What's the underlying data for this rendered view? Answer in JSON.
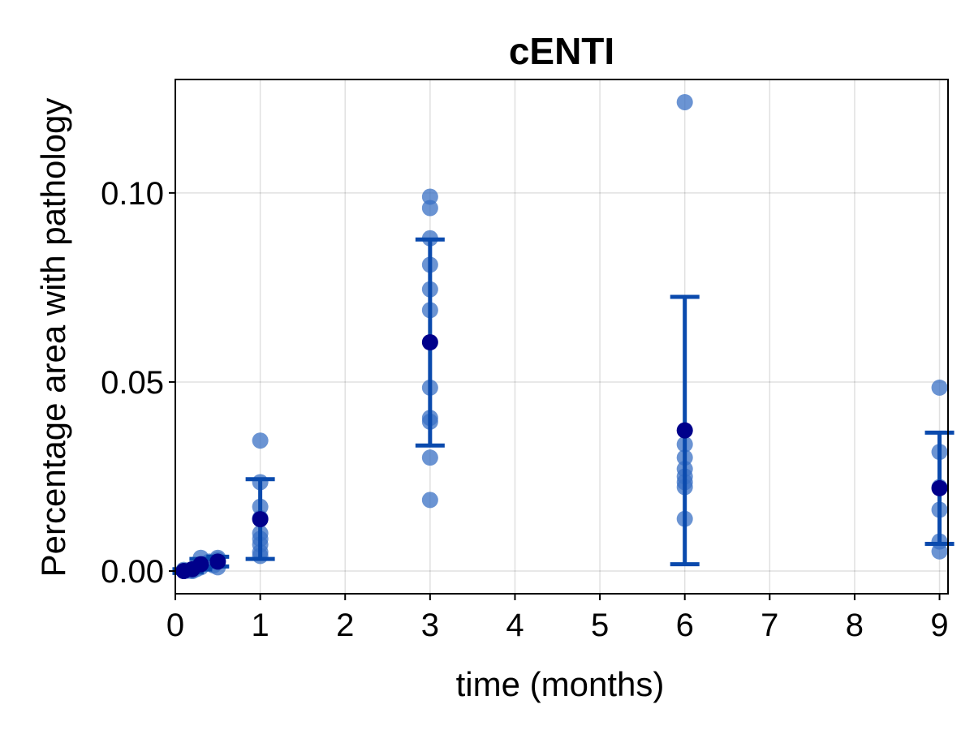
{
  "chart_data": {
    "type": "scatter",
    "title": "cENTI",
    "xlabel": "time (months)",
    "ylabel": "Percentage area with pathology",
    "xlim": [
      0,
      9.1
    ],
    "ylim": [
      -0.006,
      0.13
    ],
    "xticks": [
      0,
      1,
      2,
      3,
      4,
      5,
      6,
      7,
      8,
      9
    ],
    "xtick_labels": [
      "0",
      "1",
      "2",
      "3",
      "4",
      "5",
      "6",
      "7",
      "8",
      "9"
    ],
    "yticks": [
      0.0,
      0.05,
      0.1
    ],
    "ytick_labels": [
      "0.00",
      "0.05",
      "0.10"
    ],
    "grid": true,
    "colors": {
      "points": "#3a70c4",
      "mean": "#00008b",
      "errorbar": "#0a4aad"
    },
    "series": [
      {
        "kind": "individual",
        "points": [
          {
            "x": 0.1,
            "y": 0.0
          },
          {
            "x": 0.1,
            "y": 0.0003
          },
          {
            "x": 0.15,
            "y": 0.0001
          },
          {
            "x": 0.2,
            "y": 0.0002
          },
          {
            "x": 0.2,
            "y": 0.0
          },
          {
            "x": 0.25,
            "y": 0.0005
          },
          {
            "x": 0.3,
            "y": 0.0035
          },
          {
            "x": 0.3,
            "y": 0.001
          },
          {
            "x": 0.35,
            "y": 0.002
          },
          {
            "x": 0.4,
            "y": 0.0025
          },
          {
            "x": 0.45,
            "y": 0.0015
          },
          {
            "x": 0.5,
            "y": 0.0035
          },
          {
            "x": 0.5,
            "y": 0.0025
          },
          {
            "x": 0.5,
            "y": 0.001
          },
          {
            "x": 0.5,
            "y": 0.003
          },
          {
            "x": 1,
            "y": 0.0345
          },
          {
            "x": 1,
            "y": 0.0235
          },
          {
            "x": 1,
            "y": 0.017
          },
          {
            "x": 1,
            "y": 0.014
          },
          {
            "x": 1,
            "y": 0.01
          },
          {
            "x": 1,
            "y": 0.0085
          },
          {
            "x": 1,
            "y": 0.007
          },
          {
            "x": 1,
            "y": 0.005
          },
          {
            "x": 1,
            "y": 0.004
          },
          {
            "x": 3,
            "y": 0.099
          },
          {
            "x": 3,
            "y": 0.096
          },
          {
            "x": 3,
            "y": 0.088
          },
          {
            "x": 3,
            "y": 0.081
          },
          {
            "x": 3,
            "y": 0.0745
          },
          {
            "x": 3,
            "y": 0.069
          },
          {
            "x": 3,
            "y": 0.0485
          },
          {
            "x": 3,
            "y": 0.0405
          },
          {
            "x": 3,
            "y": 0.0395
          },
          {
            "x": 3,
            "y": 0.03
          },
          {
            "x": 3,
            "y": 0.0188
          },
          {
            "x": 6,
            "y": 0.124
          },
          {
            "x": 6,
            "y": 0.0335
          },
          {
            "x": 6,
            "y": 0.03
          },
          {
            "x": 6,
            "y": 0.027
          },
          {
            "x": 6,
            "y": 0.025
          },
          {
            "x": 6,
            "y": 0.0235
          },
          {
            "x": 6,
            "y": 0.0222
          },
          {
            "x": 6,
            "y": 0.0138
          },
          {
            "x": 9,
            "y": 0.0485
          },
          {
            "x": 9,
            "y": 0.0315
          },
          {
            "x": 9,
            "y": 0.0222
          },
          {
            "x": 9,
            "y": 0.0162
          },
          {
            "x": 9,
            "y": 0.0078
          },
          {
            "x": 9,
            "y": 0.0052
          }
        ]
      },
      {
        "kind": "mean_with_errorbars",
        "points": [
          {
            "x": 0.1,
            "y": 0.0,
            "low": -0.0005,
            "high": 0.0005
          },
          {
            "x": 0.2,
            "y": 0.0005,
            "low": -0.0003,
            "high": 0.0012
          },
          {
            "x": 0.3,
            "y": 0.0018,
            "low": 0.0004,
            "high": 0.0032
          },
          {
            "x": 0.5,
            "y": 0.0025,
            "low": 0.0012,
            "high": 0.0038
          },
          {
            "x": 1,
            "y": 0.0137,
            "low": 0.0032,
            "high": 0.0243
          },
          {
            "x": 3,
            "y": 0.0605,
            "low": 0.0332,
            "high": 0.0877
          },
          {
            "x": 6,
            "y": 0.0372,
            "low": 0.0018,
            "high": 0.0725
          },
          {
            "x": 9,
            "y": 0.0219,
            "low": 0.0072,
            "high": 0.0366
          }
        ]
      }
    ]
  }
}
